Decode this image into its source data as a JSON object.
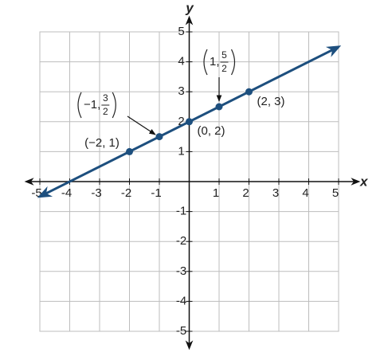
{
  "chart_data": {
    "type": "line",
    "xlabel": "x",
    "ylabel": "y",
    "xlim": [
      -5,
      5
    ],
    "ylim": [
      -5,
      5
    ],
    "xticks": [
      -5,
      -4,
      -3,
      -2,
      -1,
      1,
      2,
      3,
      4,
      5
    ],
    "yticks": [
      -5,
      -4,
      -3,
      -2,
      -1,
      1,
      2,
      3,
      4,
      5
    ],
    "grid": true,
    "series": [
      {
        "x": [
          -5,
          5
        ],
        "values": [
          -0.5,
          4.5
        ],
        "color": "#1d4f7e"
      },
      {
        "x": [
          -2,
          -1,
          0,
          1,
          2
        ],
        "values": [
          1,
          1.5,
          2,
          2.5,
          3
        ],
        "color": "#1d4f7e"
      }
    ],
    "annotations": [
      {
        "text": "(−2, 1)"
      },
      {
        "text": "(0, 2)"
      },
      {
        "text": "(2, 3)"
      },
      {
        "prefix": "−1, ",
        "numerator": "3",
        "denominator": "2"
      },
      {
        "prefix": "1, ",
        "numerator": "5",
        "denominator": "2"
      }
    ]
  }
}
